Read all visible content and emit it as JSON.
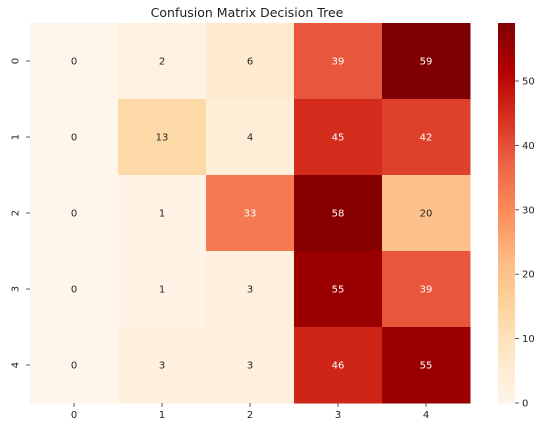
{
  "chart_data": {
    "type": "heatmap",
    "title": "Confusion Matrix Decision Tree",
    "xlabel": "",
    "ylabel": "",
    "x_categories": [
      "0",
      "1",
      "2",
      "3",
      "4"
    ],
    "y_categories": [
      "0",
      "1",
      "2",
      "3",
      "4"
    ],
    "values": [
      [
        0,
        2,
        6,
        39,
        59
      ],
      [
        0,
        13,
        4,
        45,
        42
      ],
      [
        0,
        1,
        33,
        58,
        20
      ],
      [
        0,
        1,
        3,
        55,
        39
      ],
      [
        0,
        3,
        3,
        46,
        55
      ]
    ],
    "colormap": "OrRd",
    "value_range": [
      0,
      59
    ],
    "colorbar_ticks": [
      0,
      10,
      20,
      30,
      40,
      50
    ],
    "colorbar_tick_labels": [
      "0",
      "10",
      "20",
      "30",
      "40",
      "50"
    ],
    "colors": {
      "low": "#fff5eb",
      "high": "#7f0000"
    }
  }
}
